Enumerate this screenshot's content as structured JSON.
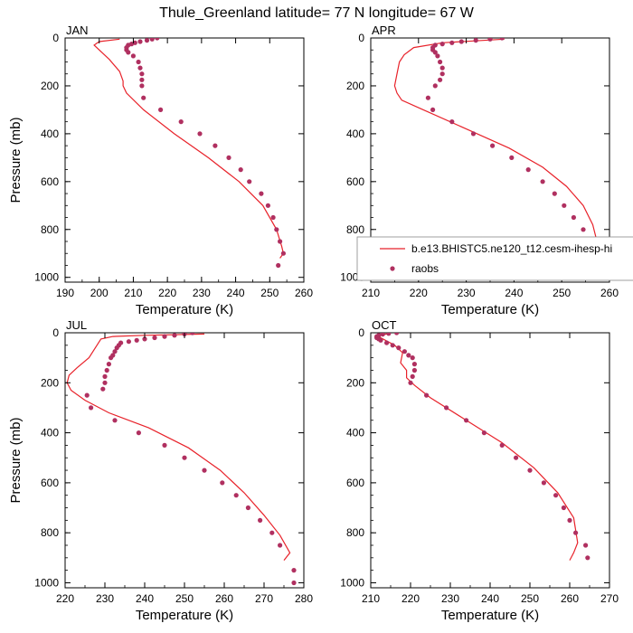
{
  "figure": {
    "title": "Thule_Greenland  latitude= 77 N longitude= 67 W"
  },
  "colors": {
    "model_line": "#e8222a",
    "obs_marker": "#b03060"
  },
  "legend": {
    "panel": "APR",
    "placement": "lower-right",
    "model_label": "b.e13.BHISTC5.ne120_t12.cesm-ihesp-hi",
    "obs_label": "raobs"
  },
  "chart_data": [
    {
      "type": "line",
      "panel_label": "JAN",
      "xlabel": "Temperature (K)",
      "ylabel": "Pressure (mb)",
      "xlim": [
        190,
        260
      ],
      "ylim": [
        1020,
        0
      ],
      "xticks": [
        "190",
        "200",
        "210",
        "220",
        "230",
        "240",
        "250",
        "260"
      ],
      "yticks": [
        "0",
        "200",
        "400",
        "600",
        "800",
        "1000"
      ],
      "model": {
        "name": "b.e13.BHISTC5.ne120_t12.cesm-ihesp-hi",
        "temperature": [
          206,
          200,
          198.5,
          200,
          203,
          206,
          207,
          207,
          208,
          213,
          222,
          232,
          241,
          248,
          252,
          253.5,
          254,
          253
        ],
        "pressure": [
          5,
          15,
          30,
          50,
          90,
          140,
          180,
          200,
          230,
          300,
          400,
          500,
          600,
          700,
          800,
          870,
          900,
          920
        ]
      },
      "obs": {
        "name": "raobs",
        "temperature": [
          217,
          215.5,
          214,
          212,
          210.5,
          209.5,
          208.5,
          208,
          208,
          208.5,
          210,
          211.5,
          212,
          212.5,
          212.5,
          212.5,
          213,
          218,
          224,
          229.5,
          234,
          238,
          241.5,
          244,
          247.5,
          249.5,
          251,
          252,
          253,
          254,
          252.5
        ],
        "pressure": [
          0,
          5,
          10,
          15,
          20,
          25,
          30,
          40,
          50,
          60,
          75,
          100,
          125,
          150,
          175,
          200,
          250,
          300,
          350,
          400,
          450,
          500,
          550,
          600,
          650,
          700,
          750,
          800,
          850,
          900,
          950
        ]
      }
    },
    {
      "type": "line",
      "panel_label": "APR",
      "xlabel": "Temperature (K)",
      "ylabel": "",
      "xlim": [
        210,
        260
      ],
      "ylim": [
        1020,
        0
      ],
      "xticks": [
        "210",
        "220",
        "230",
        "240",
        "250",
        "260"
      ],
      "yticks": [
        "0",
        "200",
        "400",
        "600",
        "800",
        "1000"
      ],
      "model": {
        "name": "b.e13.BHISTC5.ne120_t12.cesm-ihesp-hi",
        "temperature": [
          238,
          225,
          219,
          217,
          216,
          215.5,
          215,
          215.5,
          216.5,
          221,
          230,
          239,
          246,
          251,
          254.5,
          256.5,
          257.5,
          257
        ],
        "pressure": [
          5,
          20,
          40,
          70,
          100,
          150,
          200,
          230,
          260,
          300,
          380,
          460,
          540,
          620,
          700,
          780,
          860,
          920
        ]
      },
      "obs": {
        "name": "raobs",
        "temperature": [
          237.5,
          235,
          232,
          229,
          227,
          225,
          223.5,
          223,
          223,
          223.5,
          224,
          224.5,
          225,
          225,
          224.5,
          223.5,
          222,
          223,
          227,
          231.5,
          235.5,
          239.5,
          243,
          246,
          248.5,
          250.5,
          252.5,
          254.5,
          256,
          257,
          257,
          257
        ],
        "pressure": [
          0,
          5,
          10,
          15,
          20,
          25,
          30,
          40,
          50,
          60,
          75,
          100,
          125,
          150,
          175,
          200,
          250,
          300,
          350,
          400,
          450,
          500,
          550,
          600,
          650,
          700,
          750,
          800,
          850,
          900,
          950,
          1000
        ]
      }
    },
    {
      "type": "line",
      "panel_label": "JUL",
      "xlabel": "Temperature (K)",
      "ylabel": "Pressure (mb)",
      "xlim": [
        220,
        280
      ],
      "ylim": [
        1020,
        0
      ],
      "xticks": [
        "220",
        "230",
        "240",
        "250",
        "260",
        "270",
        "280"
      ],
      "yticks": [
        "0",
        "200",
        "400",
        "600",
        "800",
        "1000"
      ],
      "model": {
        "name": "b.e13.BHISTC5.ne120_t12.cesm-ihesp-hi",
        "temperature": [
          255,
          240,
          232,
          229,
          228,
          226,
          223,
          221,
          220.5,
          221.5,
          225,
          231,
          241,
          251,
          259,
          265,
          270,
          274,
          276.5,
          275
        ],
        "pressure": [
          5,
          10,
          15,
          25,
          50,
          100,
          140,
          170,
          200,
          230,
          270,
          320,
          380,
          460,
          550,
          640,
          730,
          810,
          880,
          910
        ]
      },
      "obs": {
        "name": "raobs",
        "temperature": [
          252,
          250,
          247.5,
          245,
          242.5,
          240,
          238,
          236,
          234,
          233.5,
          233,
          232.5,
          232,
          231.5,
          231,
          230.5,
          230,
          230,
          229.5,
          225.5,
          226.5,
          232.5,
          238.5,
          245,
          250,
          255,
          259.5,
          263,
          266,
          269,
          272,
          274,
          277.5,
          277.5
        ],
        "pressure": [
          0,
          5,
          10,
          15,
          20,
          25,
          30,
          35,
          40,
          50,
          60,
          75,
          90,
          100,
          125,
          150,
          175,
          200,
          225,
          250,
          300,
          350,
          400,
          450,
          500,
          550,
          600,
          650,
          700,
          750,
          800,
          850,
          950,
          1000
        ]
      }
    },
    {
      "type": "line",
      "panel_label": "OCT",
      "xlabel": "Temperature (K)",
      "ylabel": "",
      "xlim": [
        210,
        270
      ],
      "ylim": [
        1020,
        0
      ],
      "xticks": [
        "210",
        "220",
        "230",
        "240",
        "250",
        "260",
        "270"
      ],
      "yticks": [
        "0",
        "200",
        "400",
        "600",
        "800",
        "1000"
      ],
      "model": {
        "name": "b.e13.BHISTC5.ne120_t12.cesm-ihesp-hi",
        "temperature": [
          214,
          212,
          212.5,
          216,
          218,
          217.5,
          219,
          219,
          221,
          225,
          233,
          243,
          251,
          257,
          261,
          262,
          261,
          260
        ],
        "pressure": [
          5,
          10,
          20,
          50,
          80,
          120,
          150,
          180,
          210,
          260,
          340,
          440,
          540,
          640,
          740,
          840,
          880,
          910
        ]
      },
      "obs": {
        "name": "raobs",
        "temperature": [
          216.5,
          214.5,
          213,
          212,
          211.5,
          211.5,
          212,
          212.5,
          214,
          215.5,
          217,
          218.5,
          219.5,
          220.5,
          221,
          221,
          220.5,
          220,
          224,
          229,
          234,
          238.5,
          243,
          246.5,
          250,
          253.5,
          256.5,
          258.5,
          260,
          261.5,
          264,
          264.5
        ],
        "pressure": [
          0,
          3,
          6,
          10,
          15,
          20,
          25,
          30,
          40,
          50,
          60,
          75,
          90,
          100,
          125,
          150,
          175,
          200,
          250,
          300,
          350,
          400,
          450,
          500,
          550,
          600,
          650,
          700,
          750,
          800,
          850,
          900
        ]
      }
    }
  ]
}
